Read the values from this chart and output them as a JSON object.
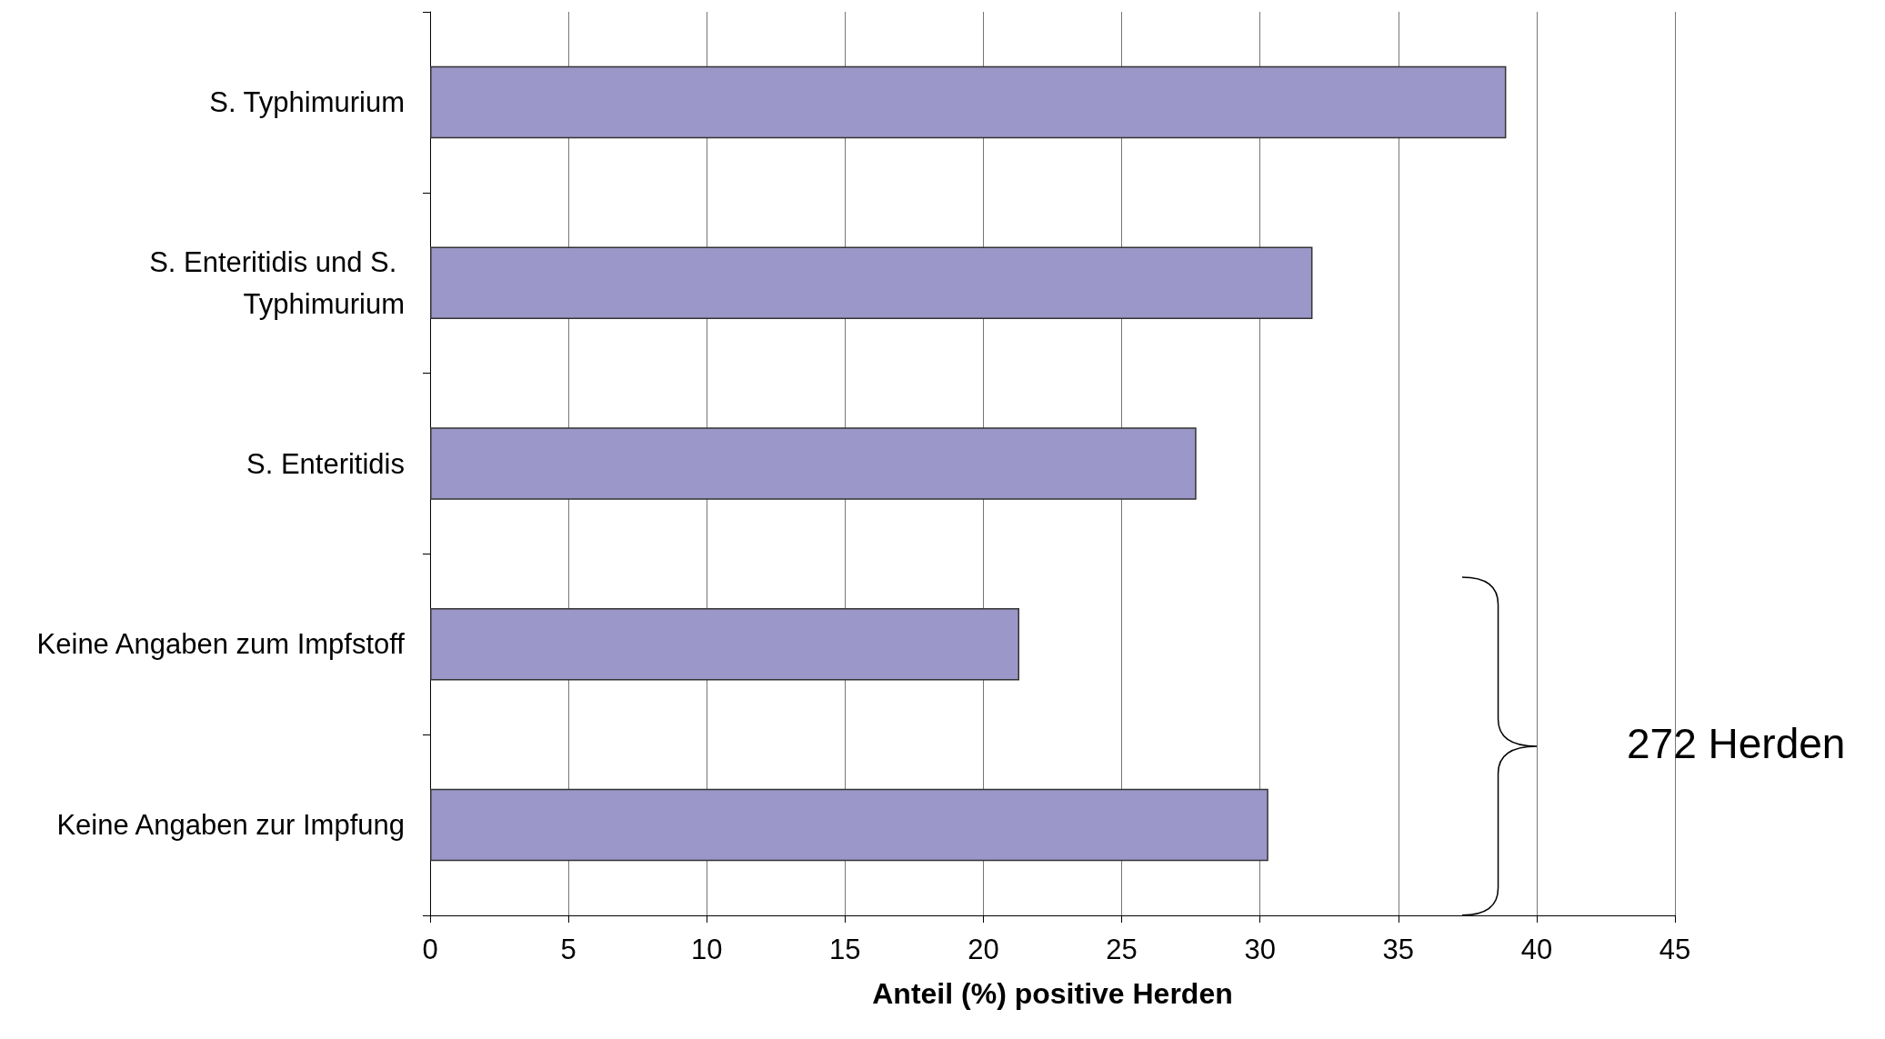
{
  "chart_data": {
    "type": "bar",
    "orientation": "horizontal",
    "xlabel": "Anteil (%) positive Herden",
    "categories": [
      "S. Typhimurium",
      "S. Enteritidis und S. Typhimurium",
      "S. Enteritidis",
      "Keine Angaben zum Impfstoff",
      "Keine Angaben zur Impfung"
    ],
    "values": [
      38.9,
      31.9,
      27.7,
      21.3,
      30.3
    ],
    "color": "#9b97c8",
    "xlim": [
      0,
      45
    ],
    "xticks": [
      0,
      5,
      10,
      15,
      20,
      25,
      30,
      35,
      40,
      45
    ],
    "grid": "x",
    "annotations": [
      "272 Herden"
    ]
  }
}
